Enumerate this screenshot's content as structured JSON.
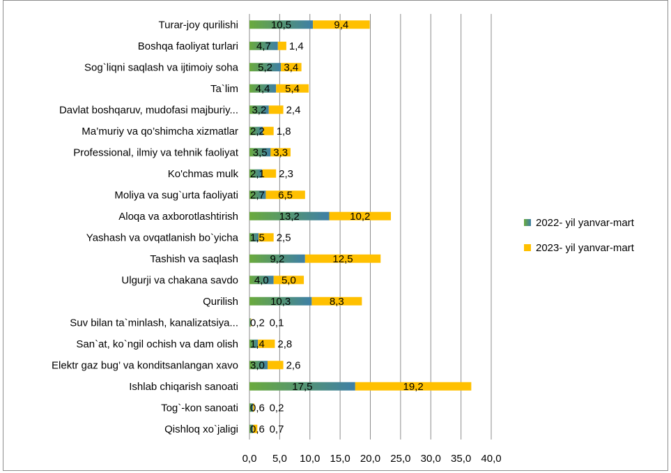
{
  "chart_data": {
    "type": "bar",
    "orientation": "horizontal",
    "stacked": true,
    "categories": [
      "Turar-joy qurilishi",
      "Boshqa faoliyat turlari",
      "Sog`liqni saqlash va ijtimoiy soha",
      "Ta`lim",
      "Davlat boshqaruv, mudofasi majburiy...",
      "Ma’muriy va qo’shimcha xizmatlar",
      "Professional, ilmiy va tehnik faoliyat",
      "Ko'chmas mulk",
      "Moliya va sug`urta faoliyati",
      "Aloqa va axborotlashtirish",
      "Yashash va ovqatlanish bo`yicha",
      "Tashish va saqlash",
      "Ulgurji va chakana savdo",
      "Qurilish",
      "Suv bilan ta`minlash, kanalizatsiya...",
      "San`at, ko`ngil ochish va dam olish",
      "Elektr gaz bug’ va konditsanlangan xavo",
      "Ishlab chiqarish sanoati",
      "Tog`-kon sanoati",
      "Qishloq xo`jaligi"
    ],
    "series": [
      {
        "name": "2022- yil yanvar-mart",
        "color": "#5b9e4b",
        "values": [
          10.5,
          4.7,
          5.2,
          4.4,
          3.2,
          2.2,
          3.5,
          2.1,
          2.7,
          13.2,
          1.5,
          9.2,
          4.0,
          10.3,
          0.2,
          1.4,
          3.0,
          17.5,
          0.6,
          0.6
        ],
        "labels": [
          "10,5",
          "4,7",
          "5,2",
          "4,4",
          "3,2",
          "2,2",
          "3,5",
          "2,1",
          "2,7",
          "13,2",
          "1,5",
          "9,2",
          "4,0",
          "10,3",
          "0,2",
          "1,4",
          "3,0",
          "17,5",
          "0,6",
          "0,6"
        ]
      },
      {
        "name": "2023- yil yanvar-mart",
        "color": "#ffc000",
        "values": [
          9.4,
          1.4,
          3.4,
          5.4,
          2.4,
          1.8,
          3.3,
          2.3,
          6.5,
          10.2,
          2.5,
          12.5,
          5.0,
          8.3,
          0.1,
          2.8,
          2.6,
          19.2,
          0.2,
          0.7
        ],
        "labels": [
          "9,4",
          "1,4",
          "3,4",
          "5,4",
          "2,4",
          "1,8",
          "3,3",
          "2,3",
          "6,5",
          "10,2",
          "2,5",
          "12,5",
          "5,0",
          "8,3",
          "0,1",
          "2,8",
          "2,6",
          "19,2",
          "0,2",
          "0,7"
        ]
      }
    ],
    "xlim": [
      0,
      40
    ],
    "xticks": [
      "0,0",
      "5,0",
      "10,0",
      "15,0",
      "20,0",
      "25,0",
      "30,0",
      "35,0",
      "40,0"
    ],
    "grid": "vertical",
    "legend_position": "right",
    "xlabel": "",
    "ylabel": "",
    "title": ""
  }
}
